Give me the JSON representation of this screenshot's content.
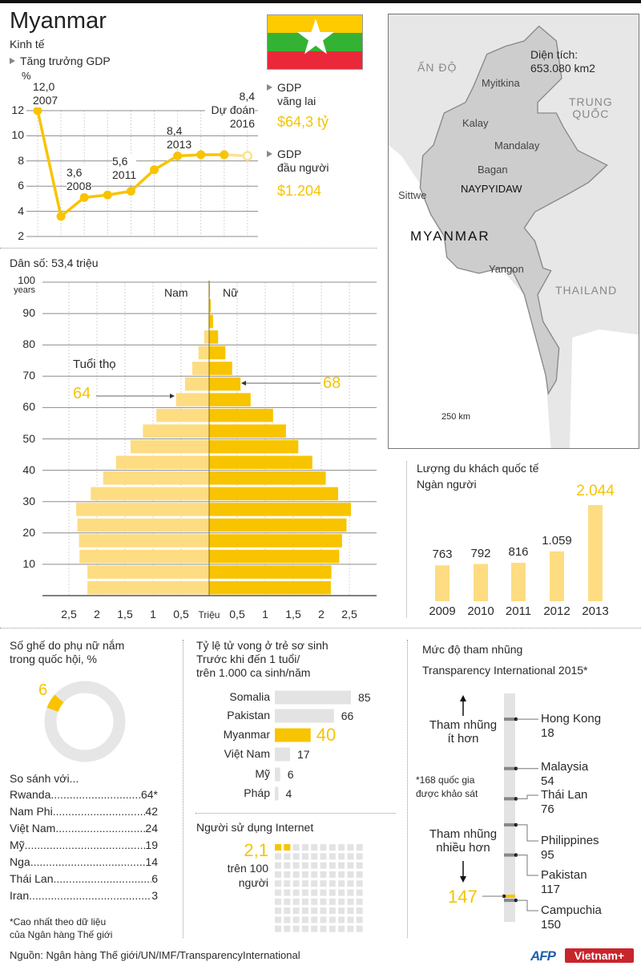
{
  "header": {
    "title": "Myanmar",
    "section": "Kinh tế"
  },
  "colors": {
    "yellow": "#f8c400",
    "light_yellow": "#fddc82",
    "gray_bar": "#e3e3e3",
    "map_land": "#e7e7e7",
    "myanmar_land": "#cdcdcd"
  },
  "flag": {
    "colors": [
      "#fecb00",
      "#34b233",
      "#ea2839"
    ],
    "star": "#ffffff"
  },
  "gdp_summary": {
    "current_label_1": "GDP",
    "current_label_2": "vãng lai",
    "current_value": "$64,3 tỷ",
    "per_capita_label_1": "GDP",
    "per_capita_label_2": "đầu người",
    "per_capita_value": "$1.204"
  },
  "map": {
    "area_label": "Diện tích:",
    "area_value": "653.080 km2",
    "country_label": "MYANMAR",
    "neighbors": {
      "india": "ẤN ĐỘ",
      "china_1": "TRUNG",
      "china_2": "QUỐC",
      "thailand": "THAILAND"
    },
    "cities": {
      "myitkina": "Myitkina",
      "kalay": "Kalay",
      "mandalay": "Mandalay",
      "bagan": "Bagan",
      "sittwe": "Sittwe",
      "capital": "NAYPYIDAW",
      "yangon": "Yangon"
    },
    "scale": "250 km"
  },
  "population": {
    "label": "Dân số: 53,4 triệu"
  },
  "footer": {
    "source": "Nguồn: Ngân hàng Thế giới/UN/IMF/TransparencyInternational",
    "logo_afp": "AFP",
    "logo_vietnam": "Vietnam+"
  },
  "chart_data": [
    {
      "type": "line",
      "title": "Tăng trưởng GDP",
      "ylabel": "%",
      "x": [
        2007,
        2008,
        2009,
        2010,
        2011,
        2012,
        2013,
        2014,
        2015,
        2016
      ],
      "values": [
        12.0,
        3.6,
        5.1,
        5.3,
        5.6,
        7.3,
        8.4,
        8.5,
        8.5,
        8.4
      ],
      "forecast_from": 2016,
      "ylim": [
        2,
        12
      ],
      "yticks": [
        "2",
        "4",
        "6",
        "8",
        "10",
        "12"
      ],
      "grid": true,
      "annotations": [
        {
          "value": "12,0",
          "year": "2007"
        },
        {
          "value": "3,6",
          "year": "2008"
        },
        {
          "value": "5,6",
          "year": "2011"
        },
        {
          "value": "8,4",
          "year": "2013"
        },
        {
          "value": "8,4",
          "note": "Dự đoán",
          "year": "2016"
        }
      ]
    },
    {
      "type": "bar",
      "orientation": "horizontal-pyramid",
      "ylabel": "years",
      "yticks": [
        "10",
        "20",
        "30",
        "40",
        "50",
        "60",
        "70",
        "80",
        "90",
        "100"
      ],
      "xlabel": "Triệu",
      "xticks_left": [
        "2,5",
        "2",
        "1,5",
        "1",
        "0,5"
      ],
      "xticks_right": [
        "0,5",
        "1",
        "1,5",
        "2",
        "2,5"
      ],
      "age_group_start": [
        0,
        5,
        10,
        15,
        20,
        25,
        30,
        35,
        40,
        45,
        50,
        55,
        60,
        65,
        70,
        75,
        80,
        85,
        90,
        95
      ],
      "series": [
        {
          "name": "Nam",
          "values": [
            2.17,
            2.17,
            2.31,
            2.32,
            2.35,
            2.37,
            2.11,
            1.89,
            1.66,
            1.4,
            1.18,
            0.94,
            0.59,
            0.43,
            0.3,
            0.19,
            0.09,
            0.01,
            0,
            0
          ]
        },
        {
          "name": "Nữ",
          "values": [
            2.17,
            2.18,
            2.32,
            2.37,
            2.45,
            2.53,
            2.3,
            2.08,
            1.84,
            1.59,
            1.37,
            1.14,
            0.74,
            0.56,
            0.41,
            0.29,
            0.16,
            0.07,
            0.03,
            0.01
          ]
        }
      ],
      "life_expectancy": {
        "label": "Tuổi thọ",
        "male": "64",
        "female": "68"
      }
    },
    {
      "type": "bar",
      "title": "Lượng du khách quốc tế",
      "ylabel": "Ngàn người",
      "categories": [
        "2009",
        "2010",
        "2011",
        "2012",
        "2013"
      ],
      "values": [
        763,
        792,
        816,
        1059,
        2044
      ],
      "value_labels": [
        "763",
        "792",
        "816",
        "1.059",
        "2.044"
      ]
    },
    {
      "type": "pie",
      "title_1": "Số ghế do phụ nữ nắm",
      "title_2": "trong quốc hội, %",
      "value": 6,
      "value_label": "6",
      "compare_title": "So sánh với...",
      "compare": [
        {
          "country": "Rwanda",
          "value": "64*"
        },
        {
          "country": "Nam Phi",
          "value": "42"
        },
        {
          "country": "Việt Nam",
          "value": "24"
        },
        {
          "country": "Mỹ",
          "value": "19"
        },
        {
          "country": "Nga",
          "value": "14"
        },
        {
          "country": "Thái Lan",
          "value": "6"
        },
        {
          "country": "Iran",
          "value": "3"
        }
      ],
      "footnote_1": "*Cao nhất theo dữ liệu",
      "footnote_2": "của Ngân hàng Thế giới"
    },
    {
      "type": "bar",
      "title_1": "Tỷ lệ tử vong ở trẻ sơ sinh",
      "title_2": "Trước khi đến 1 tuổi/",
      "title_3": "trên 1.000 ca sinh/năm",
      "categories": [
        "Somalia",
        "Pakistan",
        "Myanmar",
        "Việt Nam",
        "Mỹ",
        "Pháp"
      ],
      "values": [
        85,
        66,
        40,
        17,
        6,
        4
      ],
      "highlight": "Myanmar"
    },
    {
      "type": "waffle",
      "title": "Người sử dụng Internet",
      "value": 2.1,
      "value_label": "2,1",
      "unit_1": "trên 100",
      "unit_2": "người"
    },
    {
      "type": "rank",
      "title_1": "Mức độ tham nhũng",
      "title_2": "Transparency International 2015*",
      "total": 168,
      "less_label_1": "Tham nhũng",
      "less_label_2": "ít hơn",
      "more_label_1": "Tham nhũng",
      "more_label_2": "nhiều hơn",
      "note_1": "*168 quốc gia",
      "note_2": "được khảo sát",
      "highlight": {
        "country": "Myanmar",
        "rank": 147,
        "label": "147"
      },
      "items": [
        {
          "country": "Hong Kong",
          "rank": 18,
          "label": "18"
        },
        {
          "country": "Malaysia",
          "rank": 54,
          "label": "54"
        },
        {
          "country": "Thái Lan",
          "rank": 76,
          "label": "76"
        },
        {
          "country": "Philippines",
          "rank": 95,
          "label": "95"
        },
        {
          "country": "Pakistan",
          "rank": 117,
          "label": "117"
        },
        {
          "country": "Campuchia",
          "rank": 150,
          "label": "150"
        }
      ]
    }
  ]
}
